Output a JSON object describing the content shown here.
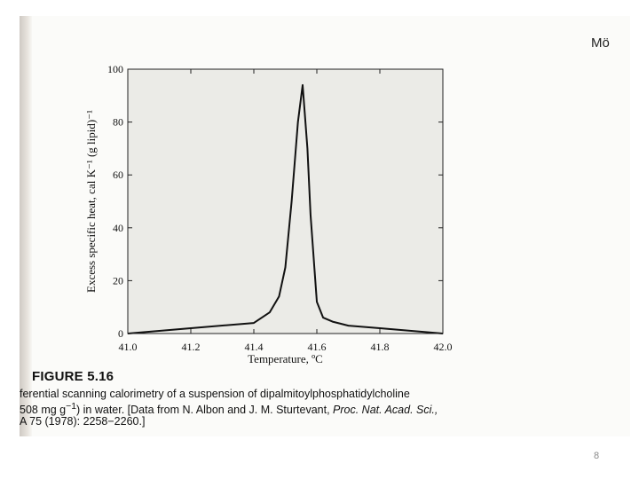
{
  "header": {
    "corner_text": "Mö"
  },
  "slide_number": "8",
  "figure": {
    "label": "FIGURE 5.16",
    "caption_line1": "ferential scanning calorimetry of a suspension of dipalmitoylphosphatidylcholine",
    "caption_line2_a": "508 mg g",
    "caption_line2_sup": "−1",
    "caption_line2_b": ") in water. [Data from N. Albon and J. M. Sturtevant, ",
    "caption_line2_ital": "Proc. Nat. Acad. Sci.,",
    "caption_line3": "A 75 (1978): 2258−2260.]"
  },
  "chart_data": {
    "type": "line",
    "title": "",
    "xlabel": "Temperature, ºC",
    "ylabel": "Excess specific heat, cal K⁻¹ (g lipid)⁻¹",
    "xlim": [
      41.0,
      42.0
    ],
    "ylim": [
      0,
      100
    ],
    "x_ticks": [
      "41.0",
      "41.2",
      "41.4",
      "41.6",
      "41.8",
      "42.0"
    ],
    "y_ticks": [
      "0",
      "20",
      "40",
      "60",
      "80",
      "100"
    ],
    "grid": false,
    "background_color": "#ebebe7",
    "line_color": "#111111",
    "x": [
      41.0,
      41.2,
      41.4,
      41.45,
      41.48,
      41.5,
      41.52,
      41.54,
      41.555,
      41.57,
      41.58,
      41.6,
      41.62,
      41.65,
      41.7,
      41.8,
      42.0
    ],
    "y": [
      0.0,
      2.0,
      4.0,
      8.0,
      14.0,
      25.0,
      50.0,
      80.0,
      94.0,
      70.0,
      45.0,
      12.0,
      6.0,
      4.5,
      3.0,
      2.0,
      0.0
    ]
  }
}
